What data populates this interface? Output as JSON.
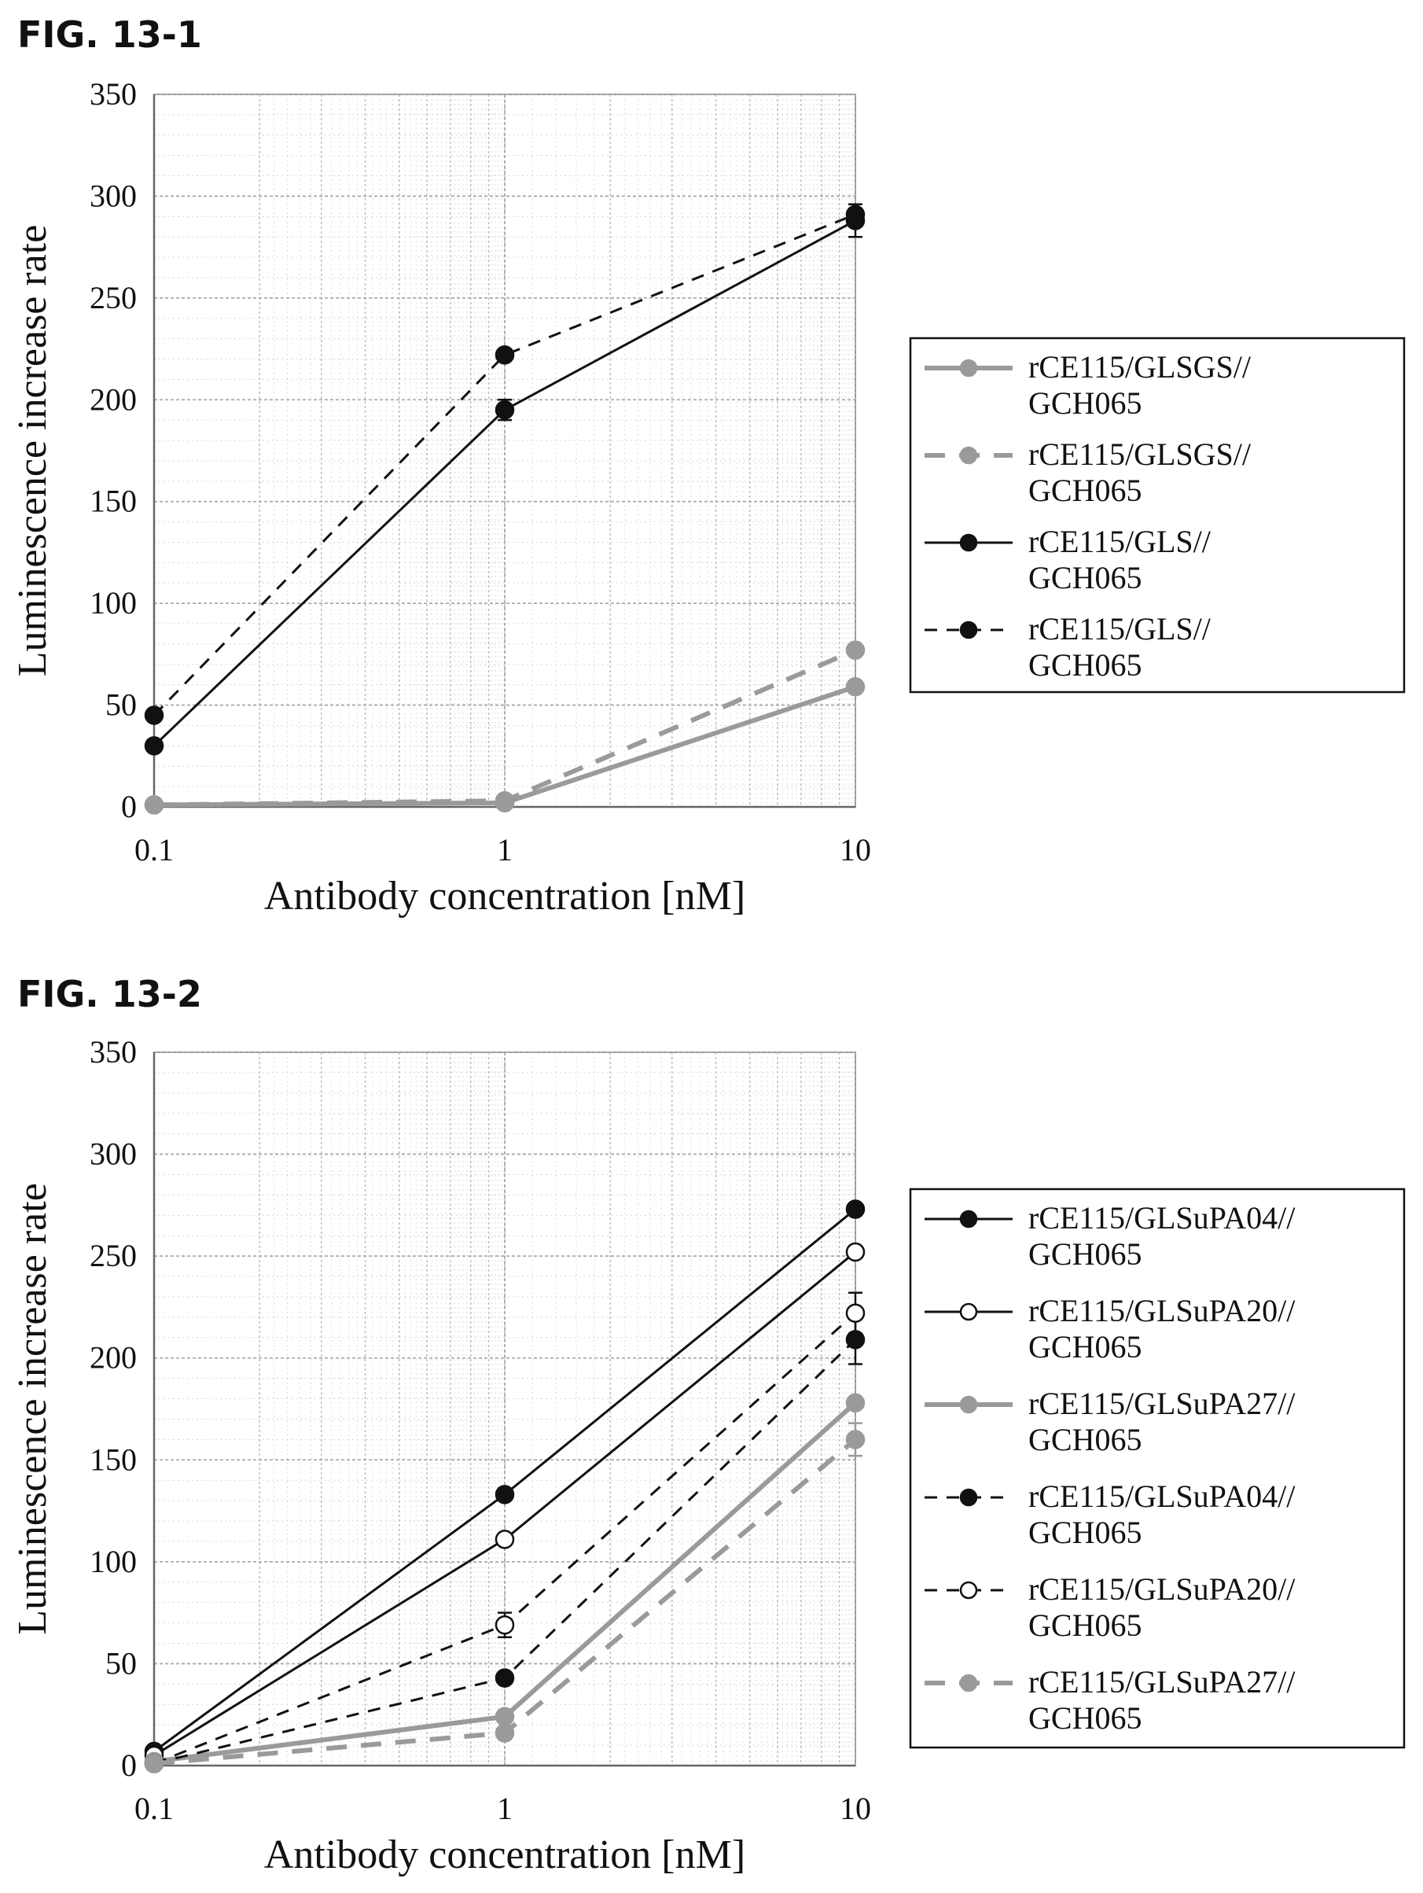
{
  "chart_data": [
    {
      "figure_label": "FIG. 13-1",
      "type": "line",
      "x_scale": "log",
      "x": [
        0.1,
        1,
        10
      ],
      "x_tick_labels": [
        "0.1",
        "1",
        "10"
      ],
      "xlim": [
        0.1,
        10
      ],
      "ylim": [
        0,
        350
      ],
      "y_ticks": [
        0,
        50,
        100,
        150,
        200,
        250,
        300,
        350
      ],
      "xlabel": "Antibody concentration [nM]",
      "ylabel": "Luminescence increase rate",
      "grid": true,
      "legend_position": "right",
      "series": [
        {
          "name": "rCE115/GLSGS//\nGCH065",
          "color": "#9a9a9a",
          "dash": "solid",
          "marker": "filled",
          "values": [
            1,
            2,
            59
          ],
          "errors": [
            0,
            0,
            0
          ]
        },
        {
          "name": "rCE115/GLSGS//\nGCH065",
          "color": "#9a9a9a",
          "dash": "dashed",
          "marker": "filled",
          "values": [
            1,
            3,
            77
          ],
          "errors": [
            0,
            0,
            0
          ]
        },
        {
          "name": "rCE115/GLS//\nGCH065",
          "color": "#111111",
          "dash": "solid",
          "marker": "filled",
          "values": [
            30,
            195,
            288
          ],
          "errors": [
            0,
            5,
            8
          ]
        },
        {
          "name": "rCE115/GLS//\nGCH065",
          "color": "#111111",
          "dash": "dashed",
          "marker": "filled",
          "values": [
            45,
            222,
            291
          ],
          "errors": [
            0,
            0,
            0
          ]
        }
      ]
    },
    {
      "figure_label": "FIG. 13-2",
      "type": "line",
      "x_scale": "log",
      "x": [
        0.1,
        1,
        10
      ],
      "x_tick_labels": [
        "0.1",
        "1",
        "10"
      ],
      "xlim": [
        0.1,
        10
      ],
      "ylim": [
        0,
        350
      ],
      "y_ticks": [
        0,
        50,
        100,
        150,
        200,
        250,
        300,
        350
      ],
      "xlabel": "Antibody concentration [nM]",
      "ylabel": "Luminescence increase rate",
      "grid": true,
      "legend_position": "right",
      "series": [
        {
          "name": "rCE115/GLSuPA04//\nGCH065",
          "color": "#111111",
          "dash": "solid",
          "marker": "filled",
          "values": [
            7,
            133,
            273
          ],
          "errors": [
            0,
            0,
            0
          ]
        },
        {
          "name": "rCE115/GLSuPA20//\nGCH065",
          "color": "#111111",
          "dash": "solid",
          "marker": "open",
          "values": [
            5,
            111,
            252
          ],
          "errors": [
            0,
            0,
            0
          ]
        },
        {
          "name": "rCE115/GLSuPA27//\nGCH065",
          "color": "#9a9a9a",
          "dash": "solid",
          "marker": "filled",
          "values": [
            2,
            24,
            178
          ],
          "errors": [
            0,
            0,
            0
          ]
        },
        {
          "name": "rCE115/GLSuPA04//\nGCH065",
          "color": "#111111",
          "dash": "dashed",
          "marker": "filled",
          "values": [
            1,
            43,
            209
          ],
          "errors": [
            0,
            0,
            12
          ]
        },
        {
          "name": "rCE115/GLSuPA20//\nGCH065",
          "color": "#111111",
          "dash": "dashed",
          "marker": "open",
          "values": [
            1,
            69,
            222
          ],
          "errors": [
            0,
            6,
            10
          ]
        },
        {
          "name": "rCE115/GLSuPA27//\nGCH065",
          "color": "#9a9a9a",
          "dash": "dashed",
          "marker": "filled",
          "values": [
            1,
            16,
            160
          ],
          "errors": [
            0,
            0,
            8
          ]
        }
      ]
    }
  ]
}
